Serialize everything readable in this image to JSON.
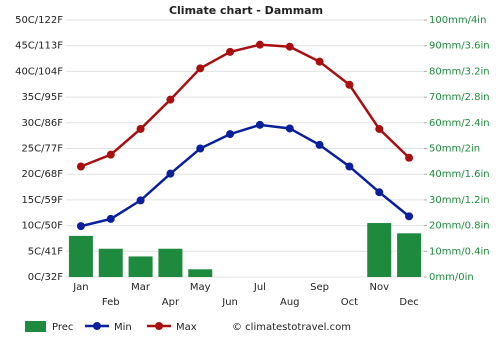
{
  "chart_data": {
    "type": "combo",
    "title": "Climate chart - Dammam",
    "categories": [
      "Jan",
      "Feb",
      "Mar",
      "Apr",
      "May",
      "Jun",
      "Jul",
      "Aug",
      "Sep",
      "Oct",
      "Nov",
      "Dec"
    ],
    "series": [
      {
        "name": "Prec",
        "type": "bar",
        "axis": "y2",
        "color": "#1e8a3e",
        "values": [
          16,
          11,
          8,
          11,
          3,
          0,
          0,
          0,
          0,
          0,
          21,
          17
        ]
      },
      {
        "name": "Min",
        "type": "line",
        "color": "#0a1f9c",
        "values": [
          9.9,
          11.3,
          14.9,
          20.1,
          25.0,
          27.8,
          29.6,
          28.9,
          25.7,
          21.5,
          16.5,
          11.8
        ]
      },
      {
        "name": "Max",
        "type": "line",
        "color": "#a80f10",
        "values": [
          21.5,
          23.8,
          28.8,
          34.5,
          40.6,
          43.8,
          45.2,
          44.8,
          41.9,
          37.4,
          28.8,
          23.2
        ]
      }
    ],
    "ylim": [
      0,
      50
    ],
    "yticks": [
      {
        "value": 0,
        "label": "0C/32F"
      },
      {
        "value": 5,
        "label": "5C/41F"
      },
      {
        "value": 10,
        "label": "10C/50F"
      },
      {
        "value": 15,
        "label": "15C/59F"
      },
      {
        "value": 20,
        "label": "20C/68F"
      },
      {
        "value": 25,
        "label": "25C/77F"
      },
      {
        "value": 30,
        "label": "30C/86F"
      },
      {
        "value": 35,
        "label": "35C/95F"
      },
      {
        "value": 40,
        "label": "40C/104F"
      },
      {
        "value": 45,
        "label": "45C/113F"
      },
      {
        "value": 50,
        "label": "50C/122F"
      }
    ],
    "y2lim": [
      0,
      100
    ],
    "y2ticks": [
      {
        "value": 0,
        "label": "0mm/0in"
      },
      {
        "value": 10,
        "label": "10mm/0.4in"
      },
      {
        "value": 20,
        "label": "20mm/0.8in"
      },
      {
        "value": 30,
        "label": "30mm/1.2in"
      },
      {
        "value": 40,
        "label": "40mm/1.6in"
      },
      {
        "value": 50,
        "label": "50mm/2in"
      },
      {
        "value": 60,
        "label": "60mm/2.4in"
      },
      {
        "value": 70,
        "label": "70mm/2.8in"
      },
      {
        "value": 80,
        "label": "80mm/3.2in"
      },
      {
        "value": 90,
        "label": "90mm/3.6in"
      },
      {
        "value": 100,
        "label": "100mm/4in"
      }
    ],
    "grid": true,
    "source": "© climatestotravel.com"
  }
}
